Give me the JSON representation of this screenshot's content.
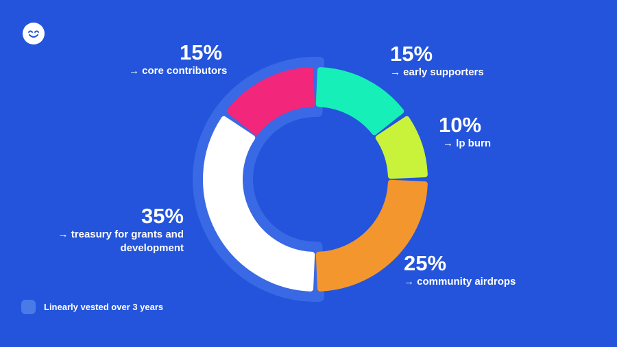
{
  "colors": {
    "background": "#2354db",
    "halo": "#3a69e5",
    "legend_swatch": "#4a7ae8"
  },
  "logo": {
    "icon": "smiling-face-icon"
  },
  "chart_data": {
    "type": "pie",
    "variant": "donut",
    "title": "",
    "slices": [
      {
        "label": "→ early supporters",
        "value": 15,
        "value_label": "15%",
        "color": "#16efb8",
        "vested": false
      },
      {
        "label": "→ lp burn",
        "value": 10,
        "value_label": "10%",
        "color": "#c8f33a",
        "vested": false
      },
      {
        "label": "→ community airdrops",
        "value": 25,
        "value_label": "25%",
        "color": "#f3962e",
        "vested": false
      },
      {
        "label": "→ treasury for grants and development",
        "value": 35,
        "value_label": "35%",
        "color": "#ffffff",
        "vested": true
      },
      {
        "label": "→ core contributors",
        "value": 15,
        "value_label": "15%",
        "color": "#f2267a",
        "vested": true
      }
    ],
    "legend": {
      "text": "Linearly vested over 3 years",
      "placement": "bottom-left"
    }
  }
}
